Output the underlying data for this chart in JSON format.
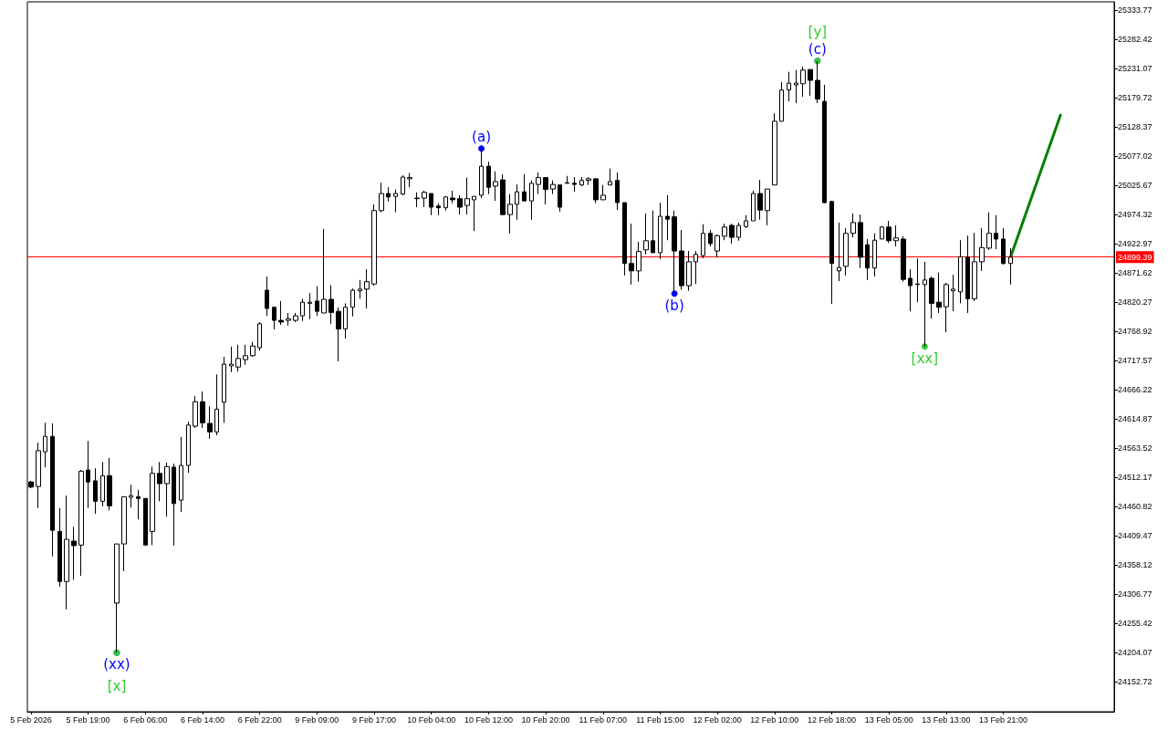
{
  "chart_data": {
    "type": "candlestick",
    "categories": [
      "5 Feb 2026",
      null,
      null,
      null,
      null,
      null,
      null,
      null,
      "5 Feb 19:00",
      null,
      null,
      null,
      null,
      null,
      null,
      null,
      "6 Feb 06:00",
      null,
      null,
      null,
      null,
      null,
      null,
      null,
      "6 Feb 14:00",
      null,
      null,
      null,
      null,
      null,
      null,
      null,
      "6 Feb 22:00",
      null,
      null,
      null,
      null,
      null,
      null,
      null,
      "9 Feb 09:00",
      null,
      null,
      null,
      null,
      null,
      null,
      null,
      "9 Feb 17:00",
      null,
      null,
      null,
      null,
      null,
      null,
      null,
      "10 Feb 04:00",
      null,
      null,
      null,
      null,
      null,
      null,
      null,
      "10 Feb 12:00",
      null,
      null,
      null,
      null,
      null,
      null,
      null,
      "10 Feb 20:00",
      null,
      null,
      null,
      null,
      null,
      null,
      null,
      "11 Feb 07:00",
      null,
      null,
      null,
      null,
      null,
      null,
      null,
      "11 Feb 15:00",
      null,
      null,
      null,
      null,
      null,
      null,
      null,
      "12 Feb 02:00",
      null,
      null,
      null,
      null,
      null,
      null,
      null,
      "12 Feb 10:00",
      null,
      null,
      null,
      null,
      null,
      null,
      null,
      "12 Feb 18:00",
      null,
      null,
      null,
      null,
      null,
      null,
      null,
      "13 Feb 05:00",
      null,
      null,
      null,
      null,
      null,
      null,
      null,
      "13 Feb 13:00",
      null,
      null,
      null,
      null,
      null,
      null,
      null,
      "13 Feb 21:00",
      null,
      null,
      null,
      null,
      null,
      null,
      null,
      null,
      null,
      null,
      null,
      null,
      null,
      null,
      null
    ],
    "ohlc": [
      [
        24504,
        24506,
        24493,
        24495
      ],
      [
        24496,
        24573,
        24458,
        24559
      ],
      [
        24557,
        24608,
        24530,
        24584
      ],
      [
        24584,
        24607,
        24373,
        24419
      ],
      [
        24417,
        24458,
        24320,
        24329
      ],
      [
        24329,
        24480,
        24280,
        24403
      ],
      [
        24400,
        24425,
        24332,
        24392
      ],
      [
        24393,
        24525,
        24339,
        24523
      ],
      [
        24525,
        24576,
        24458,
        24504
      ],
      [
        24506,
        24528,
        24448,
        24470
      ],
      [
        24470,
        24539,
        24461,
        24515
      ],
      [
        24515,
        24546,
        24454,
        24462
      ],
      [
        24291,
        24395,
        24204,
        24395
      ],
      [
        24395,
        24478,
        24347,
        24478
      ],
      [
        24477,
        24499,
        24459,
        24480
      ],
      [
        24478,
        24490,
        24438,
        24475
      ],
      [
        24475,
        24475,
        24393,
        24393
      ],
      [
        24417,
        24531,
        24393,
        24519
      ],
      [
        24519,
        24539,
        24470,
        24501
      ],
      [
        24501,
        24538,
        24443,
        24531
      ],
      [
        24530,
        24536,
        24392,
        24466
      ],
      [
        24472,
        24583,
        24451,
        24533
      ],
      [
        24533,
        24610,
        24520,
        24604
      ],
      [
        24602,
        24655,
        24599,
        24645
      ],
      [
        24645,
        24663,
        24599,
        24608
      ],
      [
        24607,
        24637,
        24580,
        24592
      ],
      [
        24592,
        24693,
        24586,
        24632
      ],
      [
        24644,
        24724,
        24608,
        24711
      ],
      [
        24708,
        24742,
        24697,
        24711
      ],
      [
        24706,
        24745,
        24698,
        24721
      ],
      [
        24719,
        24745,
        24710,
        24726
      ],
      [
        24726,
        24750,
        24724,
        24743
      ],
      [
        24740,
        24785,
        24735,
        24782
      ],
      [
        24841,
        24865,
        24796,
        24809
      ],
      [
        24811,
        24812,
        24772,
        24788
      ],
      [
        24788,
        24822,
        24780,
        24785
      ],
      [
        24788,
        24801,
        24779,
        24791
      ],
      [
        24788,
        24801,
        24785,
        24796
      ],
      [
        24796,
        24826,
        24787,
        24820
      ],
      [
        24818,
        24836,
        24790,
        24820
      ],
      [
        24822,
        24848,
        24796,
        24804
      ],
      [
        24801,
        24949,
        24801,
        24825
      ],
      [
        24825,
        24850,
        24782,
        24802
      ],
      [
        24804,
        24811,
        24716,
        24773
      ],
      [
        24773,
        24818,
        24756,
        24811
      ],
      [
        24811,
        24844,
        24795,
        24841
      ],
      [
        24840,
        24859,
        24826,
        24843
      ],
      [
        24843,
        24878,
        24809,
        24856
      ],
      [
        24852,
        24992,
        24849,
        24981
      ],
      [
        24981,
        25030,
        24978,
        25011
      ],
      [
        25011,
        25022,
        24997,
        25005
      ],
      [
        25006,
        25018,
        24978,
        25011
      ],
      [
        25010,
        25043,
        25008,
        25040
      ],
      [
        25037,
        25047,
        25022,
        25039
      ],
      [
        25002,
        25013,
        24987,
        25003
      ],
      [
        25003,
        25016,
        24987,
        25013
      ],
      [
        25011,
        25011,
        24973,
        24987
      ],
      [
        24989,
        24994,
        24973,
        24986
      ],
      [
        24986,
        25006,
        24981,
        25005
      ],
      [
        25003,
        25016,
        24994,
        25000
      ],
      [
        25002,
        25008,
        24974,
        24987
      ],
      [
        24990,
        25039,
        24974,
        25002
      ],
      [
        25000,
        25006,
        24945,
        25006
      ],
      [
        25008,
        25090,
        25003,
        25059
      ],
      [
        25059,
        25067,
        25010,
        25022
      ],
      [
        25024,
        25050,
        24998,
        25032
      ],
      [
        25035,
        25045,
        24974,
        24974
      ],
      [
        24974,
        25010,
        24941,
        24992
      ],
      [
        24992,
        25027,
        24965,
        25014
      ],
      [
        25014,
        25045,
        24998,
        24998
      ],
      [
        24998,
        25034,
        24965,
        25029
      ],
      [
        25027,
        25048,
        25010,
        25039
      ],
      [
        25039,
        25039,
        24992,
        25018
      ],
      [
        25019,
        25034,
        25010,
        25027
      ],
      [
        25026,
        25027,
        24979,
        24987
      ],
      [
        25030,
        25042,
        25029,
        25029
      ],
      [
        25029,
        25040,
        25014,
        25027
      ],
      [
        25026,
        25040,
        25024,
        25034
      ],
      [
        25034,
        25040,
        25026,
        25037
      ],
      [
        25037,
        25037,
        24994,
        25000
      ],
      [
        25000,
        25026,
        25000,
        25008
      ],
      [
        25026,
        25055,
        25026,
        25032
      ],
      [
        25034,
        25048,
        24982,
        24995
      ],
      [
        24995,
        24995,
        24867,
        24888
      ],
      [
        24888,
        24958,
        24851,
        24875
      ],
      [
        24875,
        24926,
        24856,
        24909
      ],
      [
        24912,
        24976,
        24904,
        24928
      ],
      [
        24928,
        24981,
        24907,
        24907
      ],
      [
        24907,
        24995,
        24896,
        24971
      ],
      [
        24971,
        25008,
        24929,
        24966
      ],
      [
        24970,
        24981,
        24835,
        24910
      ],
      [
        24910,
        24947,
        24842,
        24849
      ],
      [
        24849,
        24910,
        24840,
        24891
      ],
      [
        24891,
        24910,
        24852,
        24904
      ],
      [
        24902,
        24957,
        24897,
        24941
      ],
      [
        24941,
        24947,
        24918,
        24923
      ],
      [
        24910,
        24939,
        24899,
        24937
      ],
      [
        24936,
        24958,
        24929,
        24952
      ],
      [
        24955,
        24958,
        24923,
        24934
      ],
      [
        24934,
        24960,
        24928,
        24955
      ],
      [
        24953,
        24973,
        24950,
        24963
      ],
      [
        24963,
        25016,
        24963,
        25011
      ],
      [
        25011,
        25035,
        24965,
        24982
      ],
      [
        24981,
        25019,
        24955,
        25019
      ],
      [
        25026,
        25152,
        25026,
        25138
      ],
      [
        25138,
        25207,
        25138,
        25193
      ],
      [
        25193,
        25225,
        25173,
        25205
      ],
      [
        25202,
        25228,
        25170,
        25205
      ],
      [
        25204,
        25234,
        25181,
        25228
      ],
      [
        25229,
        25229,
        25183,
        25210
      ],
      [
        25210,
        25244,
        25170,
        25177
      ],
      [
        25173,
        25202,
        24994,
        24995
      ],
      [
        24997,
        24998,
        24817,
        24888
      ],
      [
        24875,
        24960,
        24857,
        24881
      ],
      [
        24883,
        24950,
        24867,
        24941
      ],
      [
        24941,
        24976,
        24934,
        24960
      ],
      [
        24960,
        24974,
        24880,
        24899
      ],
      [
        24921,
        24931,
        24859,
        24880
      ],
      [
        24880,
        24941,
        24865,
        24929
      ],
      [
        24931,
        24954,
        24931,
        24952
      ],
      [
        24952,
        24963,
        24924,
        24928
      ],
      [
        24928,
        24955,
        24918,
        24933
      ],
      [
        24931,
        24936,
        24856,
        24860
      ],
      [
        24862,
        24878,
        24804,
        24849
      ],
      [
        24852,
        24897,
        24820,
        24851
      ],
      [
        24851,
        24891,
        24742,
        24859
      ],
      [
        24862,
        24865,
        24791,
        24818
      ],
      [
        24820,
        24872,
        24801,
        24811
      ],
      [
        24812,
        24854,
        24767,
        24851
      ],
      [
        24840,
        24868,
        24804,
        24843
      ],
      [
        24838,
        24929,
        24818,
        24900
      ],
      [
        24899,
        24937,
        24801,
        24826
      ],
      [
        24826,
        24942,
        24822,
        24891
      ],
      [
        24891,
        24950,
        24875,
        24916
      ],
      [
        24915,
        24978,
        24912,
        24941
      ],
      [
        24941,
        24973,
        24913,
        24931
      ],
      [
        24931,
        24950,
        24886,
        24888
      ],
      [
        24888,
        24915,
        24851,
        24899
      ],
      null,
      null,
      null,
      null,
      null,
      null,
      null,
      null,
      null,
      null,
      null,
      null,
      null,
      null
    ],
    "series": [
      {
        "type": "line",
        "color": "#008000",
        "values": [
          null,
          null,
          null,
          null,
          null,
          null,
          null,
          null,
          null,
          null,
          null,
          null,
          null,
          null,
          null,
          null,
          null,
          null,
          null,
          null,
          null,
          null,
          null,
          null,
          null,
          null,
          null,
          null,
          null,
          null,
          null,
          null,
          null,
          null,
          null,
          null,
          null,
          null,
          null,
          null,
          null,
          null,
          null,
          null,
          null,
          null,
          null,
          null,
          null,
          null,
          null,
          null,
          null,
          null,
          null,
          null,
          null,
          null,
          null,
          null,
          null,
          null,
          null,
          null,
          null,
          null,
          null,
          null,
          null,
          null,
          null,
          null,
          null,
          null,
          null,
          null,
          null,
          null,
          null,
          null,
          null,
          null,
          null,
          null,
          null,
          null,
          null,
          null,
          null,
          null,
          null,
          null,
          null,
          null,
          null,
          null,
          null,
          null,
          null,
          null,
          null,
          null,
          null,
          null,
          null,
          null,
          null,
          null,
          null,
          null,
          null,
          null,
          null,
          null,
          null,
          null,
          null,
          null,
          null,
          null,
          null,
          null,
          null,
          null,
          null,
          null,
          null,
          null,
          null,
          null,
          null,
          null,
          null,
          null,
          null,
          null,
          null,
          24899,
          null,
          null,
          null,
          null,
          null,
          null,
          25149,
          null,
          null,
          null,
          null,
          null,
          null,
          null
        ]
      },
      {
        "type": "scatter",
        "color": "#0000ff",
        "marker": "circle",
        "values": [
          null,
          null,
          null,
          null,
          null,
          null,
          null,
          null,
          null,
          null,
          null,
          null,
          24204,
          null,
          null,
          null,
          null,
          null,
          null,
          null,
          null,
          null,
          null,
          null,
          null,
          null,
          null,
          null,
          null,
          null,
          null,
          null,
          null,
          null,
          null,
          null,
          null,
          null,
          null,
          null,
          null,
          null,
          null,
          null,
          null,
          null,
          null,
          null,
          null,
          null,
          null,
          null,
          null,
          null,
          null,
          null,
          null,
          null,
          null,
          null,
          null,
          null,
          null,
          25090,
          null,
          null,
          null,
          null,
          null,
          null,
          null,
          null,
          null,
          null,
          null,
          null,
          null,
          null,
          null,
          null,
          null,
          null,
          null,
          null,
          null,
          null,
          null,
          null,
          null,
          null,
          24835,
          null,
          null,
          null,
          null,
          null,
          null,
          null,
          null,
          null,
          null,
          null,
          null,
          null,
          null,
          null,
          null,
          null,
          null,
          null,
          25244,
          null,
          null,
          null,
          null,
          null,
          null,
          null,
          null,
          null,
          null,
          null,
          null,
          null,
          null,
          null,
          null,
          null,
          null,
          null,
          null,
          null,
          null,
          null,
          null,
          null,
          null,
          null,
          null,
          null,
          null,
          null,
          null,
          null,
          null,
          null,
          null,
          null,
          null,
          null,
          null,
          null
        ],
        "value_labels": [
          null,
          null,
          null,
          null,
          null,
          null,
          null,
          null,
          null,
          null,
          null,
          null,
          "(xx)",
          null,
          null,
          null,
          null,
          null,
          null,
          null,
          null,
          null,
          null,
          null,
          null,
          null,
          null,
          null,
          null,
          null,
          null,
          null,
          null,
          null,
          null,
          null,
          null,
          null,
          null,
          null,
          null,
          null,
          null,
          null,
          null,
          null,
          null,
          null,
          null,
          null,
          null,
          null,
          null,
          null,
          null,
          null,
          null,
          null,
          null,
          null,
          null,
          null,
          null,
          "(a)",
          null,
          null,
          null,
          null,
          null,
          null,
          null,
          null,
          null,
          null,
          null,
          null,
          null,
          null,
          null,
          null,
          null,
          null,
          null,
          null,
          null,
          null,
          null,
          null,
          null,
          null,
          "(b)",
          null,
          null,
          null,
          null,
          null,
          null,
          null,
          null,
          null,
          null,
          null,
          null,
          null,
          null,
          null,
          null,
          null,
          null,
          null,
          "(c)",
          null,
          null,
          null,
          null,
          null,
          null,
          null,
          null,
          null,
          null,
          null,
          null,
          null,
          null,
          null,
          null,
          null,
          null,
          null,
          null,
          null,
          null,
          null,
          null,
          null,
          null,
          null,
          null,
          null,
          null,
          null,
          null,
          null,
          null,
          null,
          null,
          null,
          null,
          null,
          null,
          null
        ]
      },
      {
        "type": "scatter",
        "color": "#32cd32",
        "marker": "circle",
        "values": [
          null,
          null,
          null,
          null,
          null,
          null,
          null,
          null,
          null,
          null,
          null,
          null,
          24204,
          null,
          null,
          null,
          null,
          null,
          null,
          null,
          null,
          null,
          null,
          null,
          null,
          null,
          null,
          null,
          null,
          null,
          null,
          null,
          null,
          null,
          null,
          null,
          null,
          null,
          null,
          null,
          null,
          null,
          null,
          null,
          null,
          null,
          null,
          null,
          null,
          null,
          null,
          null,
          null,
          null,
          null,
          null,
          null,
          null,
          null,
          null,
          null,
          null,
          null,
          null,
          null,
          null,
          null,
          null,
          null,
          null,
          null,
          null,
          null,
          null,
          null,
          null,
          null,
          null,
          null,
          null,
          null,
          null,
          null,
          null,
          null,
          null,
          null,
          null,
          null,
          null,
          null,
          null,
          null,
          null,
          null,
          null,
          null,
          null,
          null,
          null,
          null,
          null,
          null,
          null,
          null,
          null,
          null,
          null,
          null,
          null,
          25244,
          null,
          null,
          null,
          null,
          null,
          null,
          null,
          null,
          null,
          null,
          null,
          null,
          null,
          null,
          24742,
          null,
          null,
          null,
          null,
          null,
          null,
          null,
          null,
          null,
          null,
          null,
          null,
          null,
          null,
          null,
          null,
          null,
          null,
          null,
          null,
          null,
          null,
          null,
          null,
          null,
          null
        ],
        "value_labels": [
          null,
          null,
          null,
          null,
          null,
          null,
          null,
          null,
          null,
          null,
          null,
          null,
          "[x]",
          null,
          null,
          null,
          null,
          null,
          null,
          null,
          null,
          null,
          null,
          null,
          null,
          null,
          null,
          null,
          null,
          null,
          null,
          null,
          null,
          null,
          null,
          null,
          null,
          null,
          null,
          null,
          null,
          null,
          null,
          null,
          null,
          null,
          null,
          null,
          null,
          null,
          null,
          null,
          null,
          null,
          null,
          null,
          null,
          null,
          null,
          null,
          null,
          null,
          null,
          null,
          null,
          null,
          null,
          null,
          null,
          null,
          null,
          null,
          null,
          null,
          null,
          null,
          null,
          null,
          null,
          null,
          null,
          null,
          null,
          null,
          null,
          null,
          null,
          null,
          null,
          null,
          null,
          null,
          null,
          null,
          null,
          null,
          null,
          null,
          null,
          null,
          null,
          null,
          null,
          null,
          null,
          null,
          null,
          null,
          null,
          null,
          "[y]",
          null,
          null,
          null,
          null,
          null,
          null,
          null,
          null,
          null,
          null,
          null,
          null,
          null,
          null,
          "[xx]",
          null,
          null,
          null,
          null,
          null,
          null,
          null,
          null,
          null,
          null,
          null,
          null,
          null,
          null,
          null,
          null,
          null,
          null,
          null,
          null,
          null,
          null,
          null,
          null,
          null,
          null
        ]
      }
    ],
    "ylim": [
      24100,
      25348
    ],
    "yticks": [
      24152.72,
      24204.07,
      24255.42,
      24306.77,
      24358.12,
      24409.47,
      24460.82,
      24512.17,
      24563.52,
      24614.87,
      24666.22,
      24717.57,
      24768.92,
      24820.27,
      24871.62,
      24922.97,
      24974.32,
      25025.67,
      25077.02,
      25128.37,
      25179.72,
      25231.07,
      25282.42,
      25333.77
    ],
    "ref_lines": [
      {
        "axis": "y",
        "value": 24899.39,
        "label": "24899.39",
        "color": "#ff0000"
      }
    ]
  }
}
